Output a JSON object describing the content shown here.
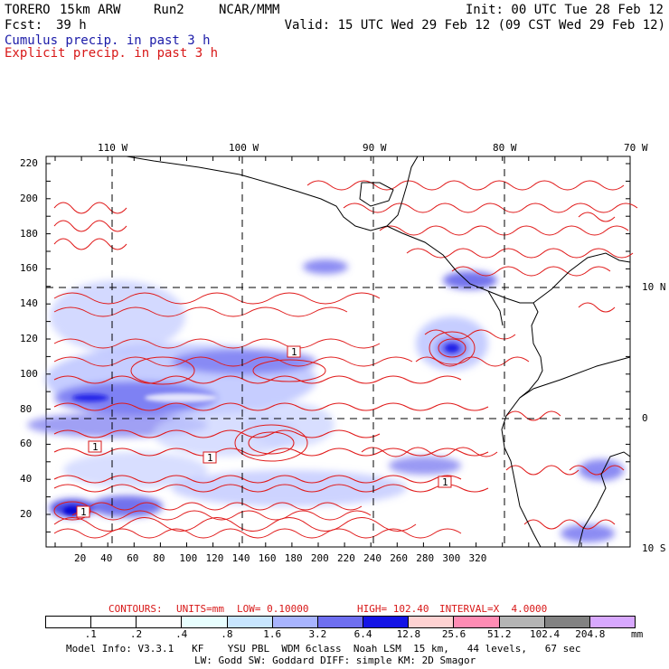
{
  "header": {
    "model": "TORERO",
    "resolution": "15km ARW",
    "run": "Run2",
    "org": "NCAR/MMM",
    "init": "Init: 00 UTC Tue 28 Feb 12",
    "fcst_label": "Fcst:",
    "fcst_value": "39 h",
    "valid": "Valid: 15 UTC Wed 29 Feb 12 (09 CST Wed 29 Feb 12)",
    "field1": "Cumulus precip. in past 3 h",
    "field2": "Explicit precip. in past 3 h",
    "field1_color": "#1a1aa8",
    "field2_color": "#d81818"
  },
  "map": {
    "lon_labels": [
      "110 W",
      "100 W",
      "90 W",
      "80 W",
      "70 W"
    ],
    "lat_labels": [
      "10 N",
      "0",
      "10 S"
    ],
    "y_ticks": [
      "220",
      "200",
      "180",
      "160",
      "140",
      "120",
      "100",
      "80",
      "60",
      "40",
      "20"
    ],
    "x_ticks": [
      "20",
      "40",
      "60",
      "80",
      "100",
      "120",
      "140",
      "160",
      "180",
      "200",
      "220",
      "240",
      "260",
      "280",
      "300",
      "320"
    ],
    "box_labels": [
      "1",
      "1",
      "1",
      "1",
      "1"
    ]
  },
  "contours": {
    "title": "CONTOURS:",
    "units": "UNITS=mm",
    "low": "LOW= 0.10000",
    "high": "HIGH= 102.40",
    "interval": "INTERVAL=X  4.0000"
  },
  "colorbar": {
    "labels": [
      ".1",
      ".2",
      ".4",
      ".8",
      "1.6",
      "3.2",
      "6.4",
      "12.8",
      "25.6",
      "51.2",
      "102.4",
      "204.8"
    ],
    "unit": "mm",
    "colors": [
      "#ffffff",
      "#ffffff",
      "#ffffff",
      "#e8ffff",
      "#c8e6ff",
      "#a8b4ff",
      "#6e6ef0",
      "#1414e6",
      "#ffd2d2",
      "#ff8cb4",
      "#b4b4b4",
      "#828282",
      "#d8a8ff"
    ]
  },
  "footer": {
    "line1": "Model Info: V3.3.1   KF    YSU PBL  WDM 6class  Noah LSM  15 km,   44 levels,   67 sec",
    "line2": "LW: Godd SW: Goddard DIFF: simple KM: 2D Smagor"
  }
}
